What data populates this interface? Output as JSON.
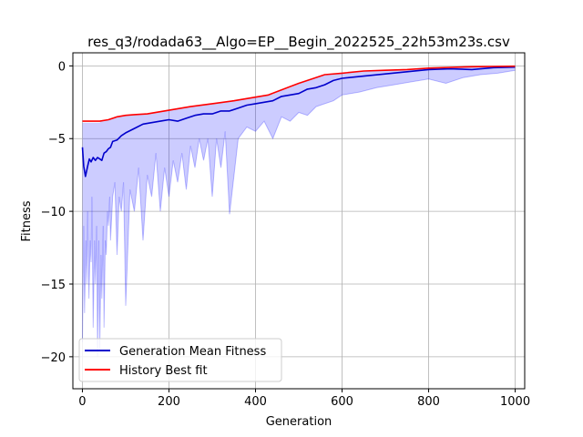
{
  "chart_data": {
    "type": "line",
    "title": "res_q3/rodada63__Algo=EP__Begin_2022525_22h53m23s.csv",
    "xlabel": "Generation",
    "ylabel": "Fitness",
    "xlim": [
      -22,
      1022
    ],
    "ylim": [
      -22.2,
      0.9
    ],
    "xticks": [
      0,
      200,
      400,
      600,
      800,
      1000
    ],
    "yticks": [
      0,
      -5,
      -10,
      -15,
      -20
    ],
    "xtick_labels": [
      "0",
      "200",
      "400",
      "600",
      "800",
      "1000"
    ],
    "ytick_labels": [
      "0",
      "−5",
      "−10",
      "−15",
      "−20"
    ],
    "grid": true,
    "legend_position": "lower-left",
    "series": [
      {
        "name": "Generation Mean Fitness",
        "color": "#0000cc",
        "x": [
          0,
          3,
          7,
          12,
          16,
          20,
          25,
          30,
          35,
          40,
          45,
          50,
          55,
          60,
          65,
          70,
          80,
          90,
          100,
          120,
          140,
          160,
          180,
          200,
          220,
          240,
          260,
          280,
          300,
          320,
          340,
          360,
          380,
          400,
          420,
          440,
          460,
          480,
          500,
          520,
          540,
          560,
          580,
          600,
          650,
          700,
          750,
          800,
          850,
          900,
          950,
          1000
        ],
        "values": [
          -5.6,
          -6.9,
          -7.6,
          -6.9,
          -6.4,
          -6.6,
          -6.3,
          -6.5,
          -6.3,
          -6.4,
          -6.5,
          -6.0,
          -5.9,
          -5.7,
          -5.6,
          -5.2,
          -5.1,
          -4.8,
          -4.6,
          -4.3,
          -4.0,
          -3.9,
          -3.8,
          -3.7,
          -3.8,
          -3.6,
          -3.4,
          -3.3,
          -3.3,
          -3.1,
          -3.1,
          -2.9,
          -2.7,
          -2.6,
          -2.5,
          -2.4,
          -2.1,
          -2.0,
          -1.9,
          -1.6,
          -1.5,
          -1.3,
          -1.0,
          -0.85,
          -0.7,
          -0.55,
          -0.4,
          -0.25,
          -0.2,
          -0.25,
          -0.12,
          -0.08
        ]
      },
      {
        "name": "History Best fit",
        "color": "#ff0000",
        "x": [
          0,
          40,
          60,
          80,
          100,
          120,
          150,
          200,
          250,
          300,
          350,
          400,
          430,
          460,
          500,
          530,
          560,
          600,
          650,
          700,
          750,
          800,
          850,
          900,
          950,
          1000
        ],
        "values": [
          -3.8,
          -3.8,
          -3.7,
          -3.5,
          -3.4,
          -3.35,
          -3.3,
          -3.05,
          -2.8,
          -2.6,
          -2.4,
          -2.15,
          -2.0,
          -1.65,
          -1.2,
          -0.9,
          -0.6,
          -0.5,
          -0.35,
          -0.3,
          -0.25,
          -0.15,
          -0.1,
          -0.06,
          -0.04,
          -0.02
        ]
      }
    ],
    "band": {
      "color": "#0000ff",
      "opacity": 0.2,
      "x": [
        0,
        3,
        5,
        8,
        10,
        12,
        15,
        18,
        20,
        22,
        25,
        28,
        30,
        33,
        35,
        38,
        40,
        43,
        45,
        48,
        50,
        53,
        55,
        58,
        60,
        63,
        65,
        70,
        75,
        80,
        85,
        90,
        95,
        100,
        110,
        120,
        130,
        140,
        150,
        160,
        170,
        180,
        190,
        200,
        210,
        220,
        230,
        240,
        250,
        260,
        270,
        280,
        290,
        300,
        310,
        320,
        330,
        340,
        360,
        380,
        400,
        420,
        440,
        460,
        480,
        500,
        520,
        540,
        560,
        580,
        600,
        640,
        680,
        720,
        760,
        800,
        840,
        880,
        920,
        960,
        1000
      ],
      "lower": [
        -19,
        -11,
        -17,
        -12,
        -15,
        -10,
        -16,
        -12,
        -13.5,
        -9,
        -18,
        -12,
        -15,
        -11,
        -20,
        -12,
        -19.5,
        -13,
        -16,
        -11,
        -18,
        -12,
        -13,
        -10,
        -11,
        -9,
        -12,
        -9,
        -8,
        -13,
        -9,
        -10,
        -8,
        -16.5,
        -8.5,
        -10,
        -7,
        -12,
        -7.5,
        -9,
        -6,
        -10,
        -7,
        -9,
        -6.5,
        -8,
        -6,
        -8.5,
        -5.5,
        -7,
        -5,
        -6.5,
        -5,
        -9,
        -5,
        -7,
        -4.5,
        -10.2,
        -5,
        -4.2,
        -4.5,
        -3.8,
        -5,
        -3.5,
        -3.8,
        -3.2,
        -3.4,
        -2.8,
        -2.6,
        -2.4,
        -2.0,
        -1.8,
        -1.5,
        -1.3,
        -1.1,
        -0.9,
        -1.2,
        -0.8,
        -0.6,
        -0.5,
        -0.3
      ],
      "upper": [
        -3.9,
        -3.9,
        -3.9,
        -3.9,
        -3.9,
        -3.9,
        -3.9,
        -3.9,
        -3.9,
        -3.9,
        -3.9,
        -3.9,
        -3.9,
        -3.9,
        -3.9,
        -3.9,
        -3.9,
        -3.8,
        -3.8,
        -3.8,
        -3.8,
        -3.7,
        -3.7,
        -3.7,
        -3.7,
        -3.6,
        -3.6,
        -3.6,
        -3.55,
        -3.5,
        -3.5,
        -3.45,
        -3.45,
        -3.4,
        -3.4,
        -3.35,
        -3.35,
        -3.3,
        -3.3,
        -3.25,
        -3.2,
        -3.2,
        -3.1,
        -3.05,
        -3.0,
        -2.95,
        -2.9,
        -2.85,
        -2.8,
        -2.75,
        -2.7,
        -2.65,
        -2.6,
        -2.6,
        -2.55,
        -2.5,
        -2.45,
        -2.4,
        -2.35,
        -2.25,
        -2.15,
        -2.05,
        -1.95,
        -1.7,
        -1.5,
        -1.25,
        -1.0,
        -0.8,
        -0.65,
        -0.55,
        -0.5,
        -0.4,
        -0.32,
        -0.28,
        -0.22,
        -0.15,
        -0.1,
        -0.08,
        -0.06,
        -0.04,
        -0.03
      ]
    }
  }
}
